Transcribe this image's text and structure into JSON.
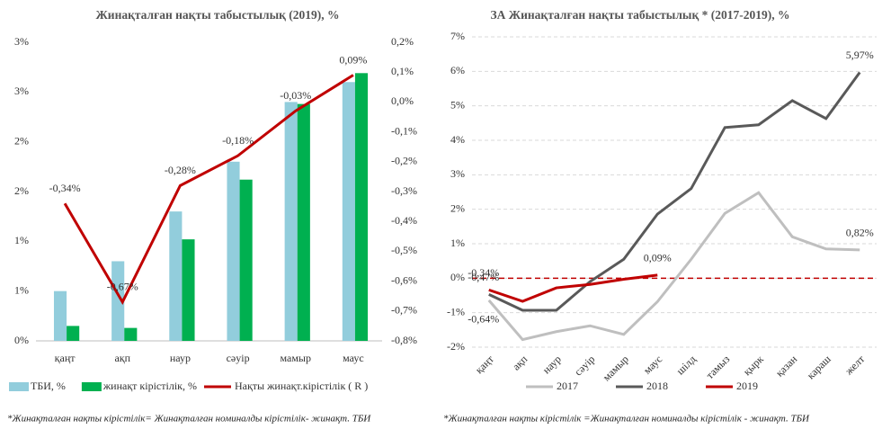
{
  "chart_data": [
    {
      "type": "combo",
      "title": "Жинақталған нақты табыстылық (2019), %",
      "categories": [
        "қаңт",
        "ақп",
        "наур",
        "сәуір",
        "мамыр",
        "маус"
      ],
      "series": [
        {
          "name": "ТБИ, %",
          "type": "bar",
          "color": "#92cddc",
          "values": [
            0.5,
            0.8,
            1.3,
            1.8,
            2.4,
            2.6
          ]
        },
        {
          "name": "жинақт кірістілік, %",
          "type": "bar",
          "color": "#00b050",
          "values": [
            0.15,
            0.13,
            1.02,
            1.62,
            2.38,
            2.69
          ]
        },
        {
          "name": "Нақты жинақт.кірістілік ( R )",
          "type": "line",
          "axis": "y2",
          "color": "#c00000",
          "values": [
            -0.34,
            -0.67,
            -0.28,
            -0.18,
            -0.03,
            0.09
          ],
          "value_labels": [
            "-0,34%",
            "-0,67%",
            "-0,28%",
            "-0,18%",
            "-0,03%",
            "0,09%"
          ]
        }
      ],
      "ylim": [
        0,
        3
      ],
      "yticks": [
        {
          "value": 0,
          "label": "0%"
        },
        {
          "value": 0.5,
          "label": "1%"
        },
        {
          "value": 1,
          "label": "1%"
        },
        {
          "value": 1.5,
          "label": "2%"
        },
        {
          "value": 2,
          "label": "2%"
        },
        {
          "value": 2.5,
          "label": "3%"
        },
        {
          "value": 3,
          "label": "3%"
        }
      ],
      "y2lim": [
        -0.8,
        0.2
      ],
      "y2ticks": [
        {
          "value": 0.2,
          "label": "0,2%"
        },
        {
          "value": 0.1,
          "label": "0,1%"
        },
        {
          "value": 0,
          "label": "0,0%"
        },
        {
          "value": -0.1,
          "label": "-0,1%"
        },
        {
          "value": -0.2,
          "label": "-0,2%"
        },
        {
          "value": -0.3,
          "label": "-0,3%"
        },
        {
          "value": -0.4,
          "label": "-0,4%"
        },
        {
          "value": -0.5,
          "label": "-0,5%"
        },
        {
          "value": -0.6,
          "label": "-0,6%"
        },
        {
          "value": -0.7,
          "label": "-0,7%"
        },
        {
          "value": -0.8,
          "label": "-0,8%"
        }
      ],
      "grid": false,
      "legend": "bottom",
      "note": "*Жинақталған нақты кірістілік= Жинақталған  номиналды кірістілік- жинақт. ТБИ"
    },
    {
      "type": "line",
      "title": "ЗА Жинақталған нақты табыстылық * (2017-2019), %",
      "categories": [
        "қаңт",
        "ақп",
        "наур",
        "сәуір",
        "мамыр",
        "маус",
        "шілд",
        "тамыз",
        "қырк",
        "қазан",
        "караш",
        "желт"
      ],
      "series": [
        {
          "name": "2017",
          "color": "#bfbfbf",
          "values": [
            -0.64,
            -1.78,
            -1.55,
            -1.38,
            -1.63,
            -0.68,
            0.55,
            1.88,
            2.48,
            1.2,
            0.85,
            0.82
          ],
          "value_labels": [
            "-0,64%",
            null,
            null,
            null,
            null,
            null,
            null,
            null,
            null,
            null,
            null,
            "0,82%"
          ]
        },
        {
          "name": "2018",
          "color": "#595959",
          "values": [
            -0.47,
            -0.93,
            -0.93,
            -0.1,
            0.55,
            1.86,
            2.6,
            4.37,
            4.45,
            5.15,
            4.63,
            5.97
          ],
          "value_labels": [
            "-0,47%",
            null,
            null,
            null,
            null,
            null,
            null,
            null,
            null,
            null,
            null,
            "5,97%"
          ]
        },
        {
          "name": "2019",
          "color": "#c00000",
          "values": [
            -0.34,
            -0.67,
            -0.28,
            -0.18,
            -0.03,
            0.09,
            null,
            null,
            null,
            null,
            null,
            null
          ],
          "value_labels": [
            "-0,34%",
            null,
            null,
            null,
            null,
            "0,09%",
            null,
            null,
            null,
            null,
            null,
            null
          ]
        }
      ],
      "ylim": [
        -2,
        7
      ],
      "yticks": [
        {
          "value": 7,
          "label": "7%"
        },
        {
          "value": 6,
          "label": "6%"
        },
        {
          "value": 5,
          "label": "5%"
        },
        {
          "value": 4,
          "label": "4%"
        },
        {
          "value": 3,
          "label": "3%"
        },
        {
          "value": 2,
          "label": "2%"
        },
        {
          "value": 1,
          "label": "1%"
        },
        {
          "value": 0,
          "label": "0%"
        },
        {
          "value": -1,
          "label": "-1%"
        },
        {
          "value": -2,
          "label": "-2%"
        }
      ],
      "grid": true,
      "zero_line_color": "#c00000",
      "legend": "bottom",
      "note": "*Жинақталған нақты кірістілік =Жинақталған номиналды кірістілік - жинақт. ТБИ"
    }
  ]
}
